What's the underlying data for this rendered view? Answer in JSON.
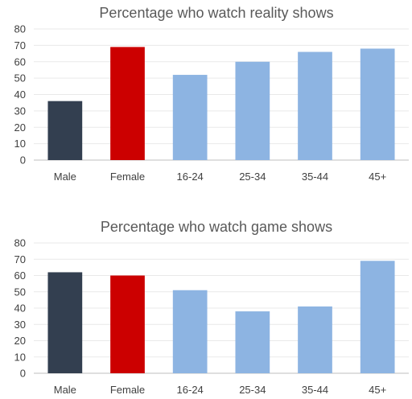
{
  "chart_data": [
    {
      "type": "bar",
      "title": "Percentage who watch reality shows",
      "categories": [
        "Male",
        "Female",
        "16-24",
        "25-34",
        "35-44",
        "45+"
      ],
      "values": [
        36,
        69,
        52,
        60,
        66,
        68
      ],
      "bar_colors": [
        "#333f50",
        "#cc0000",
        "#8db4e2",
        "#8db4e2",
        "#8db4e2",
        "#8db4e2"
      ],
      "ylim": [
        0,
        80
      ],
      "yticks": [
        0,
        10,
        20,
        30,
        40,
        50,
        60,
        70,
        80
      ],
      "grid": true,
      "legend": "none"
    },
    {
      "type": "bar",
      "title": "Percentage who watch game shows",
      "categories": [
        "Male",
        "Female",
        "16-24",
        "25-34",
        "35-44",
        "45+"
      ],
      "values": [
        62,
        60,
        51,
        38,
        41,
        69
      ],
      "bar_colors": [
        "#333f50",
        "#cc0000",
        "#8db4e2",
        "#8db4e2",
        "#8db4e2",
        "#8db4e2"
      ],
      "ylim": [
        0,
        80
      ],
      "yticks": [
        0,
        10,
        20,
        30,
        40,
        50,
        60,
        70,
        80
      ],
      "grid": true,
      "legend": "none"
    }
  ]
}
